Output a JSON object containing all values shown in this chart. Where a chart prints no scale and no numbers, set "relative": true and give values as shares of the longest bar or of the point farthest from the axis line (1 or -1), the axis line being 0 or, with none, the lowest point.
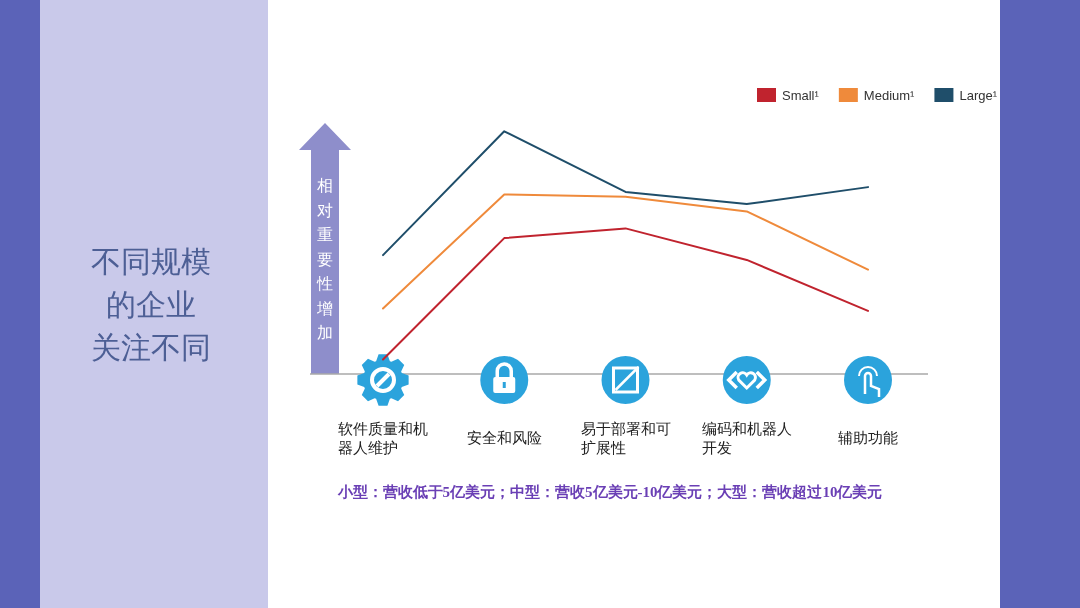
{
  "chart_data": {
    "type": "line",
    "title": "不同规模的企业关注不同",
    "ylabel": "相对重要性增加",
    "categories": [
      "软件质量和机器人维护",
      "安全和风险",
      "易于部署和可扩展性",
      "编码和机器人开发",
      "辅助功能"
    ],
    "relative": true,
    "legend": "top right",
    "series": [
      {
        "name": "Small¹",
        "color": "#c0232e",
        "values": [
          0.06,
          0.56,
          0.6,
          0.47,
          0.26
        ]
      },
      {
        "name": "Medium¹",
        "color": "#ef8a3b",
        "values": [
          0.27,
          0.74,
          0.73,
          0.67,
          0.43
        ]
      },
      {
        "name": "Large¹",
        "color": "#1f4e6a",
        "values": [
          0.49,
          1,
          0.75,
          0.7,
          0.77
        ]
      }
    ],
    "annotations": [
      "小型：营收低于5亿美元；中型：营收5亿美元-10亿美元；大型：营收超过10亿美元"
    ]
  }
}
